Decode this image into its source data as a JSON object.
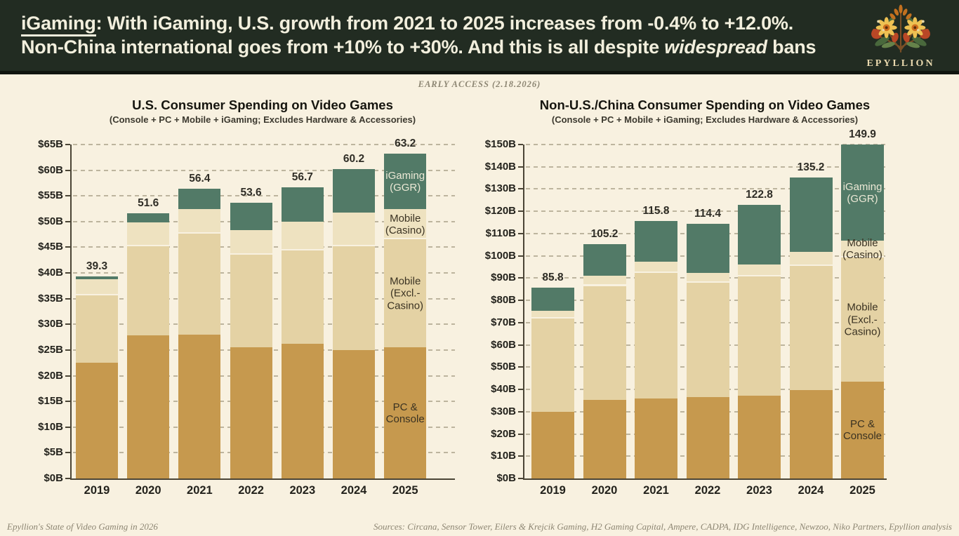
{
  "header": {
    "line1_prefix": "iGaming",
    "line1_rest": ": With iGaming, U.S. growth from 2021 to 2025 increases from -0.4% to +12.0%.",
    "line2_part1": "Non-China international goes from +10% to +30%. And this is all despite ",
    "line2_italic": "widespread",
    "line2_part2": " bans",
    "logo_text": "EPYLLION"
  },
  "early_access": "EARLY ACCESS (2.18.2026)",
  "colors": {
    "background": "#f8f1e0",
    "header_bg": "#222c22",
    "header_text": "#f2efdd",
    "pc_console": "#c6994e",
    "mobile_excl_casino": "#e4d2a4",
    "mobile_casino": "#eee2c0",
    "igaming": "#527a67",
    "grid": "#8d8368",
    "axis": "#4b4536",
    "text_dark": "#23221c",
    "muted": "#8d8673",
    "legend_light": "#ece9d6",
    "legend_dark": "#3a3222"
  },
  "chart_data": [
    {
      "type": "bar",
      "stacked": true,
      "title": "U.S. Consumer Spending on Video Games",
      "subtitle": "(Console + PC + Mobile + iGaming; Excludes Hardware & Accessories)",
      "categories": [
        "2019",
        "2020",
        "2021",
        "2022",
        "2023",
        "2024",
        "2025"
      ],
      "ylim": [
        0,
        65
      ],
      "ytick_values": [
        0,
        5,
        10,
        15,
        20,
        25,
        30,
        35,
        40,
        45,
        50,
        55,
        60,
        65
      ],
      "ytick_labels": [
        "$0B",
        "$5B",
        "$10B",
        "$15B",
        "$20B",
        "$25B",
        "$30B",
        "$35B",
        "$40B",
        "$45B",
        "$50B",
        "$55B",
        "$60B",
        "$65B"
      ],
      "grid": "dashed",
      "legend_position": "on-last-bar",
      "series": [
        {
          "name": "PC & Console",
          "color_key": "pc_console",
          "legend_lines": [
            "PC &",
            "Console"
          ],
          "legend_tone": "dark",
          "values": [
            22.5,
            27.9,
            28.0,
            25.5,
            26.2,
            25.0,
            25.5
          ]
        },
        {
          "name": "Mobile (Excl.-Casino)",
          "color_key": "mobile_excl_casino",
          "legend_lines": [
            "Mobile",
            "(Excl.-",
            "Casino)"
          ],
          "legend_tone": "dark",
          "values": [
            13.1,
            17.3,
            19.7,
            18.0,
            18.2,
            20.2,
            21.0
          ]
        },
        {
          "name": "Mobile (Casino)",
          "color_key": "mobile_casino",
          "legend_lines": [
            "Mobile",
            "(Casino)"
          ],
          "legend_tone": "dark",
          "values": [
            3.2,
            4.7,
            4.7,
            4.8,
            5.6,
            6.5,
            5.9
          ]
        },
        {
          "name": "iGaming (GGR)",
          "color_key": "igaming",
          "legend_lines": [
            "iGaming",
            "(GGR)"
          ],
          "legend_tone": "light",
          "values": [
            0.5,
            1.7,
            4.0,
            5.3,
            6.7,
            8.5,
            10.8
          ]
        }
      ],
      "totals": [
        39.3,
        51.6,
        56.4,
        53.6,
        56.7,
        60.2,
        63.2
      ]
    },
    {
      "type": "bar",
      "stacked": true,
      "title": "Non-U.S./China Consumer Spending on Video Games",
      "subtitle": "(Console + PC + Mobile + iGaming; Excludes Hardware & Accessories)",
      "categories": [
        "2019",
        "2020",
        "2021",
        "2022",
        "2023",
        "2024",
        "2025"
      ],
      "ylim": [
        0,
        150
      ],
      "ytick_values": [
        0,
        10,
        20,
        30,
        40,
        50,
        60,
        70,
        80,
        90,
        100,
        110,
        120,
        130,
        140,
        150
      ],
      "ytick_labels": [
        "$0B",
        "$10B",
        "$20B",
        "$30B",
        "$40B",
        "$50B",
        "$60B",
        "$70B",
        "$80B",
        "$90B",
        "$100B",
        "$110B",
        "$120B",
        "$130B",
        "$140B",
        "$150B"
      ],
      "grid": "dashed",
      "legend_position": "on-last-bar",
      "series": [
        {
          "name": "PC & Console",
          "color_key": "pc_console",
          "legend_lines": [
            "PC &",
            "Console"
          ],
          "legend_tone": "dark",
          "values": [
            30.0,
            35.3,
            36.0,
            36.5,
            37.3,
            39.7,
            43.5
          ]
        },
        {
          "name": "Mobile (Excl.-Casino)",
          "color_key": "mobile_excl_casino",
          "legend_lines": [
            "Mobile",
            "(Excl.-",
            "Casino)"
          ],
          "legend_tone": "dark",
          "values": [
            42.0,
            51.2,
            56.3,
            51.3,
            53.5,
            55.7,
            55.8
          ]
        },
        {
          "name": "Mobile (Casino)",
          "color_key": "mobile_casino",
          "legend_lines": [
            "Mobile",
            "(Casino)"
          ],
          "legend_tone": "dark",
          "values": [
            3.3,
            4.5,
            5.2,
            4.6,
            5.4,
            6.4,
            7.4
          ]
        },
        {
          "name": "iGaming (GGR)",
          "color_key": "igaming",
          "legend_lines": [
            "iGaming",
            "(GGR)"
          ],
          "legend_tone": "light",
          "values": [
            10.5,
            14.2,
            18.3,
            22.0,
            26.6,
            33.4,
            43.2
          ]
        }
      ],
      "totals": [
        85.8,
        105.2,
        115.8,
        114.4,
        122.8,
        135.2,
        149.9
      ]
    }
  ],
  "footer": {
    "left": "Epyllion's State of Video Gaming in 2026",
    "right": "Sources: Circana, Sensor Tower, Eilers & Krejcik Gaming, H2 Gaming Capital, Ampere, CADPA, IDG Intelligence, Newzoo, Niko Partners, Epyllion analysis"
  }
}
